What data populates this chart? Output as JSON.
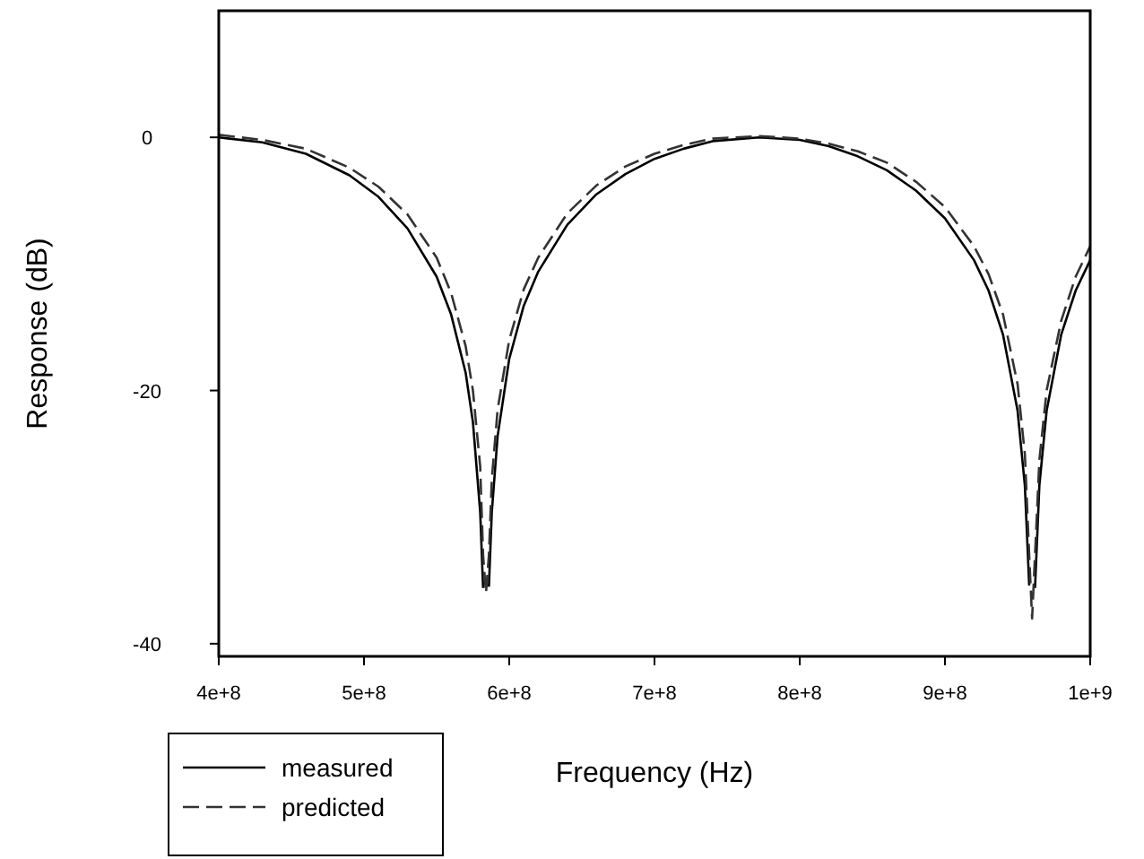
{
  "chart_data": {
    "type": "line",
    "xlabel": "Frequency (Hz)",
    "ylabel": "Response (dB)",
    "xlim": [
      400000000,
      1000000000
    ],
    "ylim": [
      -41,
      10
    ],
    "xticks": [
      {
        "value": 400000000,
        "label": "4e+8"
      },
      {
        "value": 500000000,
        "label": "5e+8"
      },
      {
        "value": 600000000,
        "label": "6e+8"
      },
      {
        "value": 700000000,
        "label": "7e+8"
      },
      {
        "value": 800000000,
        "label": "8e+8"
      },
      {
        "value": 900000000,
        "label": "9e+8"
      },
      {
        "value": 1000000000,
        "label": "1e+9"
      }
    ],
    "yticks": [
      -40,
      -20,
      0
    ],
    "grid": false,
    "legend": "bottom left",
    "marker": "none",
    "x": [
      400000000,
      430000000,
      460000000,
      490000000,
      510000000,
      530000000,
      550000000,
      560000000,
      570000000,
      575000000,
      580000000,
      582000000,
      584000000,
      586000000,
      588000000,
      592000000,
      600000000,
      610000000,
      620000000,
      640000000,
      660000000,
      680000000,
      700000000,
      720000000,
      740000000,
      772000000,
      800000000,
      820000000,
      840000000,
      860000000,
      880000000,
      900000000,
      920000000,
      930000000,
      940000000,
      950000000,
      955000000,
      958000000,
      960000000,
      962000000,
      965000000,
      970000000,
      980000000,
      990000000,
      1000000000
    ],
    "series": [
      {
        "name": "measured",
        "color": "#000000",
        "line_style": "solid",
        "values": [
          0,
          -0.4,
          -1.3,
          -3,
          -4.7,
          -7.2,
          -11,
          -14,
          -18.6,
          -22.5,
          -29.6,
          -35.6,
          null,
          -35.5,
          -29.6,
          -23.6,
          -17.5,
          -13.3,
          -10.6,
          -6.9,
          -4.5,
          -2.9,
          -1.7,
          -0.9,
          -0.3,
          0,
          -0.2,
          -0.7,
          -1.5,
          -2.6,
          -4.2,
          -6.4,
          -9.7,
          -12.1,
          -15.6,
          -21.6,
          -27.5,
          -35.4,
          null,
          -35.6,
          -27.5,
          -21.6,
          -15.6,
          -12.1,
          -9.7
        ]
      },
      {
        "name": "predicted",
        "color": "#333333",
        "line_style": "dashed",
        "values": [
          0.2,
          -0.2,
          -0.9,
          -2.4,
          -3.9,
          -6.1,
          -9.5,
          -12.3,
          -16.5,
          -20,
          -26,
          -33,
          -36,
          -33,
          -27,
          -21.5,
          -16,
          -12,
          -9.5,
          -6,
          -3.8,
          -2.3,
          -1.3,
          -0.6,
          -0.1,
          0.1,
          -0.1,
          -0.5,
          -1.1,
          -2,
          -3.5,
          -5.5,
          -8.6,
          -10.8,
          -14,
          -19.5,
          -25,
          -33,
          -38,
          -33,
          -25.5,
          -20,
          -14.5,
          -11,
          -8.6
        ]
      }
    ]
  }
}
